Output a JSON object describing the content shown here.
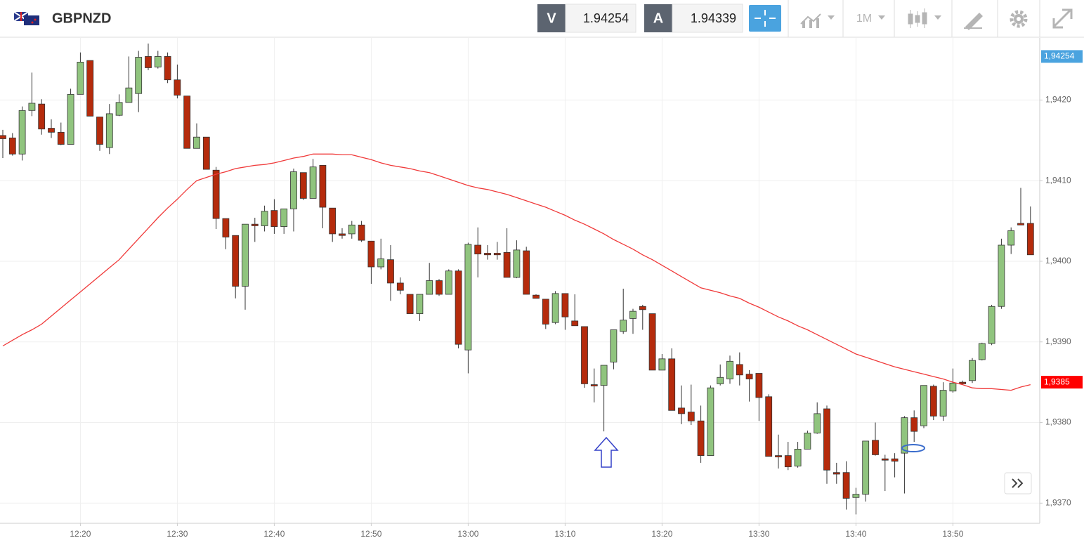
{
  "toolbar": {
    "symbol": "GBPNZD",
    "bid_label": "V",
    "bid": "1.94254",
    "ask_label": "A",
    "ask": "1.94339",
    "timeframe": "1M"
  },
  "chart_data": {
    "type": "candlestick",
    "categories": [
      null,
      null,
      null,
      null,
      null,
      null,
      null,
      null,
      "12:20",
      null,
      null,
      null,
      null,
      null,
      null,
      null,
      null,
      null,
      "12:30",
      null,
      null,
      null,
      null,
      null,
      null,
      null,
      null,
      null,
      "12:40",
      null,
      null,
      null,
      null,
      null,
      null,
      null,
      null,
      null,
      "12:50",
      null,
      null,
      null,
      null,
      null,
      null,
      null,
      null,
      null,
      "13:00",
      null,
      null,
      null,
      null,
      null,
      null,
      null,
      null,
      null,
      "13:10",
      null,
      null,
      null,
      null,
      null,
      null,
      null,
      null,
      null,
      "13:20",
      null,
      null,
      null,
      null,
      null,
      null,
      null,
      null,
      null,
      "13:30",
      null,
      null,
      null,
      null,
      null,
      null,
      null,
      null,
      null,
      "13:40",
      null,
      null,
      null,
      null,
      null,
      null,
      null,
      null,
      null,
      "13:50",
      null,
      null,
      null,
      null,
      null,
      null,
      null,
      null
    ],
    "open": [
      1.94156,
      1.94153,
      1.94133,
      1.94187,
      1.94195,
      1.94165,
      1.9416,
      1.94145,
      1.94207,
      1.94249,
      1.94179,
      1.94141,
      1.94181,
      1.94197,
      1.94208,
      1.94254,
      1.94241,
      1.94254,
      1.94225,
      1.94205,
      1.9414,
      1.94154,
      1.94113,
      1.94053,
      1.94032,
      1.93969,
      1.94046,
      1.94044,
      1.94063,
      1.94043,
      1.94065,
      1.9411,
      1.94078,
      1.94119,
      1.94066,
      1.94034,
      1.94034,
      1.94045,
      1.94025,
      1.93993,
      1.94002,
      1.93973,
      1.93959,
      1.93935,
      1.93959,
      1.93976,
      1.93959,
      1.93988,
      1.9389,
      1.9402,
      1.9401,
      1.9401,
      1.94011,
      1.9398,
      1.94013,
      1.93958,
      1.93953,
      1.93924,
      1.9396,
      1.93926,
      1.93919,
      1.93847,
      1.93846,
      1.93875,
      1.93913,
      1.93929,
      1.93944,
      1.93935,
      1.93865,
      1.93879,
      1.93818,
      1.93813,
      1.93802,
      1.93759,
      1.93848,
      1.93854,
      1.93872,
      1.9386,
      1.93861,
      1.93832,
      1.93759,
      1.93759,
      1.93746,
      1.93767,
      1.93787,
      1.93817,
      1.93738,
      1.93738,
      1.93707,
      1.93711,
      1.93778,
      1.93755,
      1.93755,
      1.93762,
      1.93806,
      1.93796,
      1.93845,
      1.93808,
      1.93839,
      1.9385,
      1.93852,
      1.93878,
      1.93898,
      1.93944,
      1.9402,
      1.94047,
      1.94047
    ],
    "high": [
      1.94163,
      1.94159,
      1.94192,
      1.94234,
      1.94201,
      1.94176,
      1.94172,
      1.94214,
      1.94259,
      1.94249,
      1.94179,
      1.94195,
      1.94207,
      1.94254,
      1.94261,
      1.9427,
      1.94261,
      1.94259,
      1.94244,
      1.94205,
      1.94171,
      1.94154,
      1.94117,
      1.94053,
      1.94032,
      1.94046,
      1.94054,
      1.94069,
      1.94077,
      1.94065,
      1.94115,
      1.9411,
      1.94127,
      1.94119,
      1.94066,
      1.94041,
      1.9405,
      1.9405,
      1.94025,
      1.94028,
      1.9402,
      1.9398,
      1.93959,
      1.93959,
      1.93998,
      1.93978,
      1.9399,
      1.9399,
      1.94023,
      1.94042,
      1.9402,
      1.94024,
      1.94041,
      1.94026,
      1.94018,
      1.93959,
      1.93953,
      1.93963,
      1.9396,
      1.93959,
      1.93919,
      1.93867,
      1.93871,
      1.93915,
      1.93966,
      1.93941,
      1.93946,
      1.93935,
      1.93885,
      1.93892,
      1.93846,
      1.93847,
      1.93821,
      1.93846,
      1.93872,
      1.93883,
      1.93887,
      1.93865,
      1.93861,
      1.93835,
      1.93785,
      1.93776,
      1.93776,
      1.9379,
      1.93825,
      1.93821,
      1.9375,
      1.93752,
      1.93719,
      1.93777,
      1.938,
      1.9376,
      1.93762,
      1.93808,
      1.93815,
      1.93846,
      1.93847,
      1.9385,
      1.93867,
      1.93852,
      1.9388,
      1.93899,
      1.93946,
      1.94028,
      1.94042,
      1.94091,
      1.94068
    ],
    "low": [
      1.94128,
      1.94131,
      1.94125,
      1.9418,
      1.94157,
      1.94153,
      1.94144,
      1.94145,
      1.94207,
      1.9418,
      1.94137,
      1.94133,
      1.9418,
      1.94197,
      1.94185,
      1.94237,
      1.94239,
      1.94221,
      1.94202,
      1.9414,
      1.9414,
      1.94114,
      1.9404,
      1.94015,
      1.93954,
      1.9394,
      1.94024,
      1.94037,
      1.94034,
      1.94034,
      1.94037,
      1.94076,
      1.94078,
      1.94041,
      1.94024,
      1.94028,
      1.94028,
      1.94024,
      1.93972,
      1.9399,
      1.93951,
      1.93959,
      1.93935,
      1.93926,
      1.93959,
      1.93957,
      1.93959,
      1.93892,
      1.93861,
      1.9398,
      1.94002,
      1.94002,
      1.9398,
      1.93979,
      1.93959,
      1.93954,
      1.93916,
      1.93922,
      1.93915,
      1.9392,
      1.93843,
      1.93825,
      1.93789,
      1.93866,
      1.9391,
      1.9391,
      1.93915,
      1.93865,
      1.93865,
      1.93815,
      1.93798,
      1.93797,
      1.9375,
      1.93759,
      1.93846,
      1.93848,
      1.93846,
      1.93826,
      1.93802,
      1.93758,
      1.93743,
      1.93741,
      1.93744,
      1.93767,
      1.93786,
      1.93724,
      1.93724,
      1.93692,
      1.93686,
      1.93702,
      1.93759,
      1.93715,
      1.93732,
      1.93712,
      1.93776,
      1.93793,
      1.93803,
      1.93802,
      1.93837,
      1.93847,
      1.93849,
      1.93877,
      1.93896,
      1.93941,
      1.94009,
      1.94045,
      1.94008
    ],
    "close": [
      1.94152,
      1.94133,
      1.94187,
      1.94196,
      1.94164,
      1.9416,
      1.94145,
      1.94207,
      1.94247,
      1.9418,
      1.94145,
      1.94183,
      1.94197,
      1.94215,
      1.94253,
      1.9424,
      1.94254,
      1.94225,
      1.94206,
      1.9414,
      1.94154,
      1.94114,
      1.94053,
      1.9403,
      1.93969,
      1.94046,
      1.94044,
      1.94062,
      1.94043,
      1.94065,
      1.94111,
      1.94078,
      1.94117,
      1.94067,
      1.94034,
      1.94032,
      1.94045,
      1.94026,
      1.93993,
      1.94003,
      1.93973,
      1.93964,
      1.93935,
      1.93959,
      1.93976,
      1.93959,
      1.93988,
      1.93897,
      1.94021,
      1.94009,
      1.94008,
      1.94008,
      1.9398,
      1.94014,
      1.93959,
      1.93954,
      1.93922,
      1.9396,
      1.93931,
      1.9392,
      1.93848,
      1.93846,
      1.93871,
      1.93915,
      1.93927,
      1.93938,
      1.9394,
      1.93865,
      1.93879,
      1.93815,
      1.93811,
      1.93802,
      1.93759,
      1.93843,
      1.93856,
      1.93876,
      1.93859,
      1.93854,
      1.93831,
      1.93758,
      1.93758,
      1.93745,
      1.93767,
      1.93787,
      1.93811,
      1.93741,
      1.93736,
      1.93706,
      1.93711,
      1.93777,
      1.9376,
      1.93754,
      1.93752,
      1.93806,
      1.93789,
      1.93846,
      1.93808,
      1.9384,
      1.93849,
      1.93848,
      1.93877,
      1.93898,
      1.93944,
      1.9402,
      1.94038,
      1.94045,
      1.94008
    ],
    "up_color": "#90c47e",
    "down_color": "#b52b0c",
    "ma": {
      "color": "#f03a3a",
      "values": [
        1.93895,
        1.93902,
        1.93909,
        1.93915,
        1.93922,
        1.93932,
        1.93942,
        1.93952,
        1.93962,
        1.93972,
        1.93982,
        1.93992,
        1.94002,
        1.94015,
        1.94028,
        1.94041,
        1.94054,
        1.94066,
        1.94077,
        1.94089,
        1.941,
        1.94104,
        1.94108,
        1.94111,
        1.94115,
        1.94117,
        1.94119,
        1.9412,
        1.94122,
        1.94125,
        1.94128,
        1.9413,
        1.94133,
        1.94133,
        1.94133,
        1.94132,
        1.94132,
        1.94129,
        1.94126,
        1.94122,
        1.94119,
        1.94117,
        1.94115,
        1.94112,
        1.9411,
        1.94106,
        1.94102,
        1.94098,
        1.94094,
        1.94091,
        1.94089,
        1.94086,
        1.94083,
        1.94079,
        1.94075,
        1.94071,
        1.94067,
        1.94062,
        1.94057,
        1.94051,
        1.94046,
        1.9404,
        1.94034,
        1.94027,
        1.94021,
        1.94015,
        1.94008,
        1.94002,
        1.93995,
        1.93988,
        1.93981,
        1.93974,
        1.93967,
        1.93964,
        1.93961,
        1.93957,
        1.93954,
        1.93948,
        1.93943,
        1.93937,
        1.93931,
        1.93926,
        1.9392,
        1.93915,
        1.93909,
        1.93903,
        1.93897,
        1.93891,
        1.93885,
        1.93881,
        1.93877,
        1.93873,
        1.93869,
        1.93866,
        1.93863,
        1.9386,
        1.93857,
        1.93854,
        1.9385,
        1.93847,
        1.93843,
        1.93842,
        1.93842,
        1.93841,
        1.9384,
        1.93844,
        1.93847
      ]
    },
    "ylim": [
      1.93675,
      1.94277
    ],
    "yticks": [
      {
        "value": 1.937,
        "label": "1,9370"
      },
      {
        "value": 1.938,
        "label": "1,9380"
      },
      {
        "value": 1.939,
        "label": "1,9390"
      },
      {
        "value": 1.94,
        "label": "1,9400"
      },
      {
        "value": 1.941,
        "label": "1,9410"
      },
      {
        "value": 1.942,
        "label": "1,9420"
      }
    ],
    "grid": true,
    "price_tags": [
      {
        "value": 1.94254,
        "label": "1,94254",
        "color": "#4aa3df"
      },
      {
        "value": 1.9385,
        "label": "1,9385",
        "color": "#ff0000"
      }
    ]
  }
}
